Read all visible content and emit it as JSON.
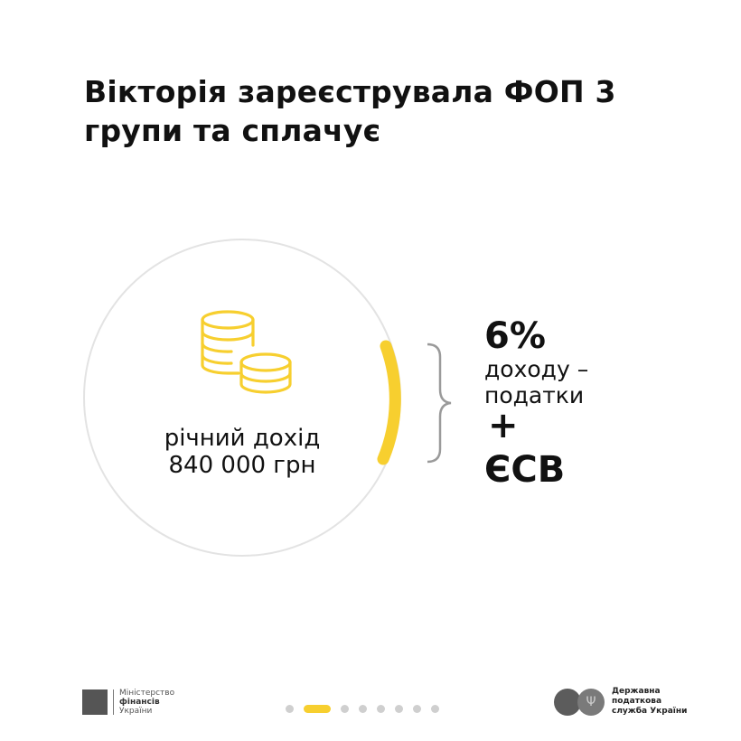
{
  "title": {
    "line1": "Вікторія зареєструвала ФОП 3",
    "line2": "групи та сплачує"
  },
  "income": {
    "label": "річний дохід",
    "value": "840 000 грн",
    "icon": "coins-icon"
  },
  "result": {
    "percent": "6%",
    "line1": "доходу –",
    "line2": "податки",
    "plus": "+",
    "esv": "ЄСВ"
  },
  "colors": {
    "accent": "#F7CF2F",
    "circle": "#E3E3E3",
    "brace": "#9A9A9A"
  },
  "footer": {
    "ministry": {
      "line1": "Міністерство",
      "line2": "фінансів",
      "line3": "України"
    },
    "tax_service": {
      "line1": "Державна",
      "line2": "податкова",
      "line3": "служба України"
    },
    "pagination": {
      "total": 8,
      "current": 2
    }
  }
}
